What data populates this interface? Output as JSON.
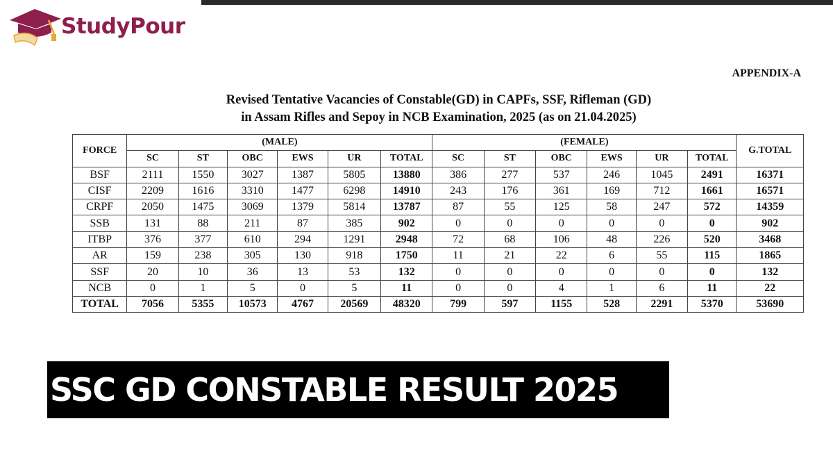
{
  "brand": {
    "name": "StudyPour",
    "color": "#8e1f4b",
    "accent": "#e8a73a"
  },
  "appendix": "APPENDIX-A",
  "title_line1": "Revised Tentative Vacancies of Constable(GD) in CAPFs, SSF, Rifleman (GD)",
  "title_line2": "in Assam Rifles and Sepoy in NCB Examination, 2025 (as on 21.04.2025)",
  "table": {
    "force_header": "FORCE",
    "male_header": "(MALE)",
    "female_header": "(FEMALE)",
    "gtotal_header": "G.TOTAL",
    "sub_headers": [
      "SC",
      "ST",
      "OBC",
      "EWS",
      "UR",
      "TOTAL"
    ],
    "rows": [
      {
        "force": "BSF",
        "male": [
          "2111",
          "1550",
          "3027",
          "1387",
          "5805",
          "13880"
        ],
        "female": [
          "386",
          "277",
          "537",
          "246",
          "1045",
          "2491"
        ],
        "gtotal": "16371"
      },
      {
        "force": "CISF",
        "male": [
          "2209",
          "1616",
          "3310",
          "1477",
          "6298",
          "14910"
        ],
        "female": [
          "243",
          "176",
          "361",
          "169",
          "712",
          "1661"
        ],
        "gtotal": "16571"
      },
      {
        "force": "CRPF",
        "male": [
          "2050",
          "1475",
          "3069",
          "1379",
          "5814",
          "13787"
        ],
        "female": [
          "87",
          "55",
          "125",
          "58",
          "247",
          "572"
        ],
        "gtotal": "14359"
      },
      {
        "force": "SSB",
        "male": [
          "131",
          "88",
          "211",
          "87",
          "385",
          "902"
        ],
        "female": [
          "0",
          "0",
          "0",
          "0",
          "0",
          "0"
        ],
        "gtotal": "902"
      },
      {
        "force": "ITBP",
        "male": [
          "376",
          "377",
          "610",
          "294",
          "1291",
          "2948"
        ],
        "female": [
          "72",
          "68",
          "106",
          "48",
          "226",
          "520"
        ],
        "gtotal": "3468"
      },
      {
        "force": "AR",
        "male": [
          "159",
          "238",
          "305",
          "130",
          "918",
          "1750"
        ],
        "female": [
          "11",
          "21",
          "22",
          "6",
          "55",
          "115"
        ],
        "gtotal": "1865"
      },
      {
        "force": "SSF",
        "male": [
          "20",
          "10",
          "36",
          "13",
          "53",
          "132"
        ],
        "female": [
          "0",
          "0",
          "0",
          "0",
          "0",
          "0"
        ],
        "gtotal": "132"
      },
      {
        "force": "NCB",
        "male": [
          "0",
          "1",
          "5",
          "0",
          "5",
          "11"
        ],
        "female": [
          "0",
          "0",
          "4",
          "1",
          "6",
          "11"
        ],
        "gtotal": "22"
      }
    ],
    "total_row": {
      "force": "TOTAL",
      "male": [
        "7056",
        "5355",
        "10573",
        "4767",
        "20569",
        "48320"
      ],
      "female": [
        "799",
        "597",
        "1155",
        "528",
        "2291",
        "5370"
      ],
      "gtotal": "53690"
    }
  },
  "banner": "SSC GD CONSTABLE RESULT 2025"
}
